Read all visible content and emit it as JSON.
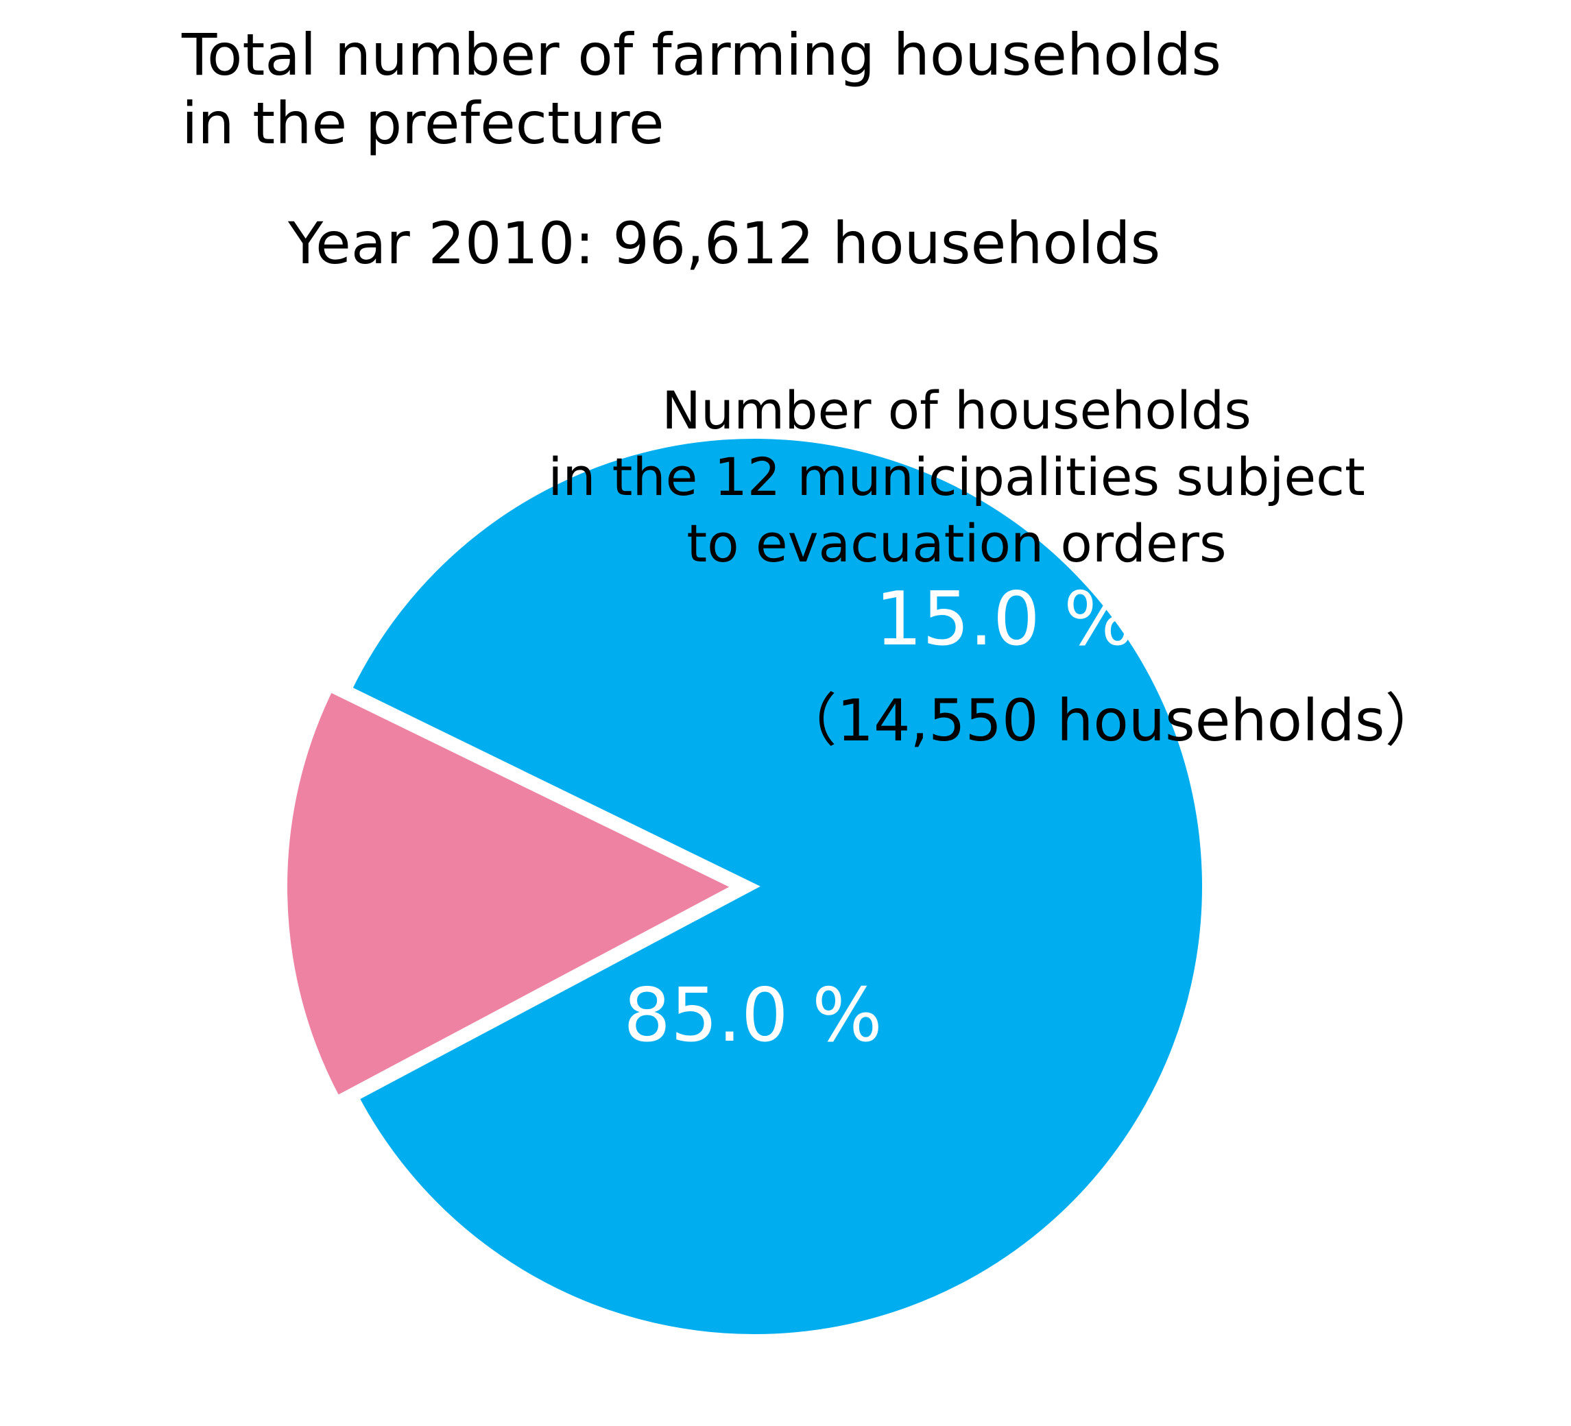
{
  "chart_data": {
    "type": "pie",
    "title": [
      "Total number of farming households",
      "in the prefecture"
    ],
    "subtitle": "Year 2010: 96,612 households",
    "slices": [
      {
        "label": "",
        "percent_label": "85.0 %",
        "value": 85.0,
        "color": "#00AEEF"
      },
      {
        "label": "Number of households in the 12 municipalities subject to evacuation orders",
        "label_lines": [
          "Number of households",
          "in the 12 municipalities subject",
          "to evacuation orders"
        ],
        "percent_label": "15.0 %",
        "count_label": "（14,550 households）",
        "value": 15.0,
        "color": "#EE82A2",
        "exploded": true
      }
    ]
  }
}
